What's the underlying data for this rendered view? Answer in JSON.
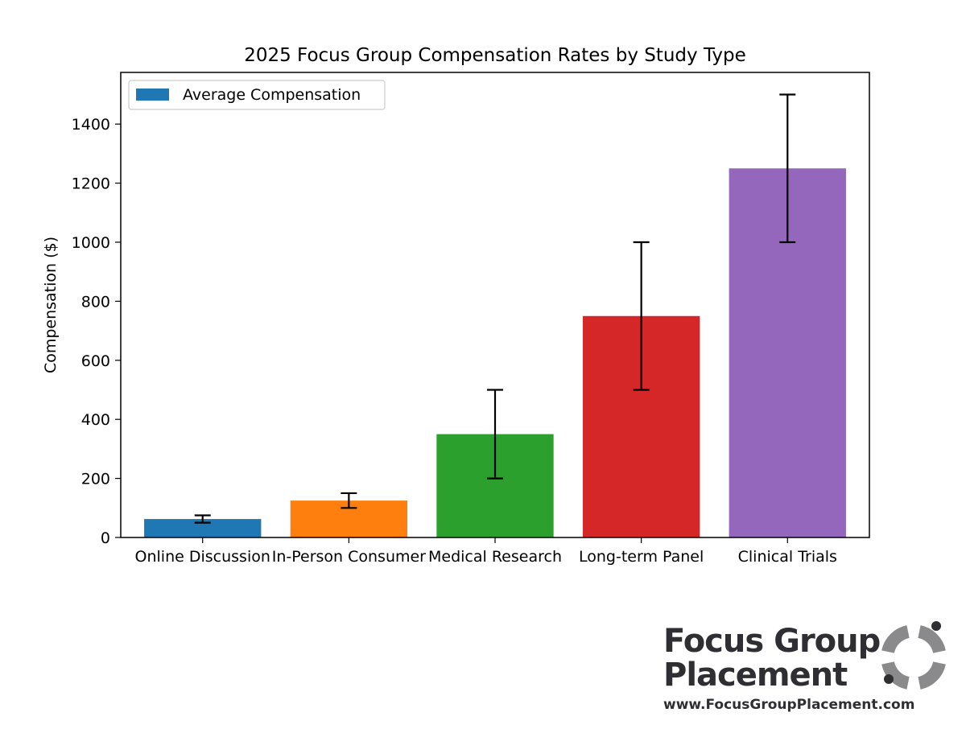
{
  "chart_data": {
    "type": "bar",
    "title": "2025 Focus Group Compensation Rates by Study Type",
    "xlabel": "",
    "ylabel": "Compensation ($)",
    "categories": [
      "Online Discussion",
      "In-Person Consumer",
      "Medical Research",
      "Long-term Panel",
      "Clinical Trials"
    ],
    "values": [
      62.5,
      125,
      350,
      750,
      1250
    ],
    "error_low": [
      50,
      100,
      200,
      500,
      1000
    ],
    "error_high": [
      75,
      150,
      500,
      1000,
      1500
    ],
    "colors": [
      "#1f77b4",
      "#ff7f0e",
      "#2ca02c",
      "#d62728",
      "#9467bd"
    ],
    "ylim": [
      0,
      1575
    ],
    "yticks": [
      0,
      200,
      400,
      600,
      800,
      1000,
      1200,
      1400
    ],
    "legend": {
      "label": "Average Compensation",
      "placement": "top-left",
      "color": "#1f77b4"
    },
    "grid": false
  },
  "logo": {
    "line1": "Focus Group",
    "line2": "Placement",
    "url": "www.FocusGroupPlacement.com",
    "color": "#2f2f33",
    "mark_color": "#8a8a8c"
  }
}
